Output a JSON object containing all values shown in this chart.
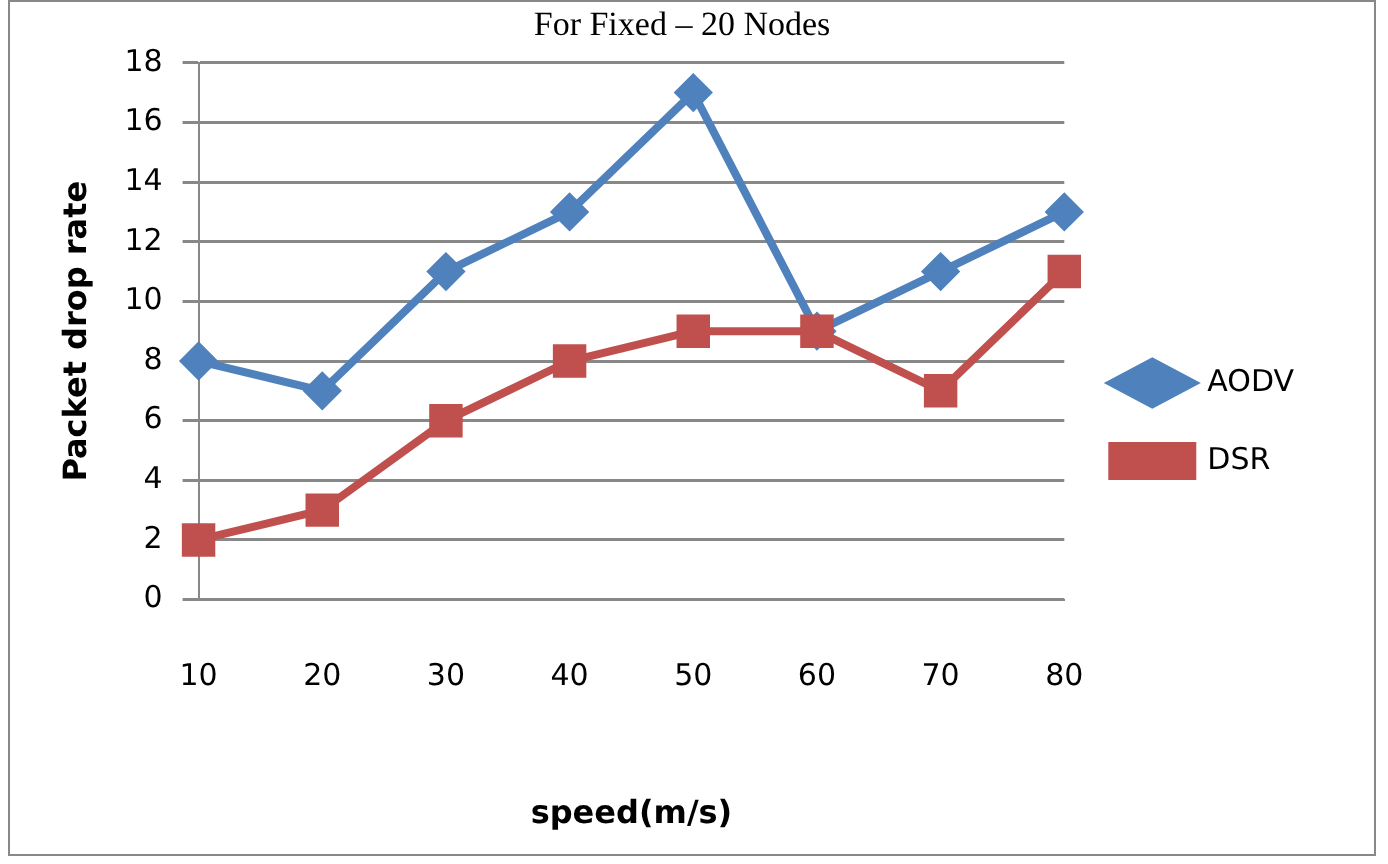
{
  "chart_data": {
    "type": "line",
    "title": "For Fixed – 20 Nodes",
    "xlabel": "speed(m/s)",
    "ylabel": "Packet drop rate",
    "categories": [
      "10",
      "20",
      "30",
      "40",
      "50",
      "60",
      "70",
      "80"
    ],
    "series": [
      {
        "name": "AODV",
        "color": "#4f81bd",
        "values": [
          8,
          7,
          11,
          13,
          17,
          9,
          11,
          13
        ],
        "marker": "diamond"
      },
      {
        "name": "DSR",
        "color": "#c0504d",
        "values": [
          2,
          3,
          6,
          8,
          9,
          9,
          7,
          11
        ],
        "marker": "square"
      }
    ],
    "ylim": [
      0,
      18
    ],
    "yticks": [
      0,
      2,
      4,
      6,
      8,
      10,
      12,
      14,
      16,
      18
    ],
    "grid": "y",
    "legend": "right",
    "line_style": "solid"
  }
}
